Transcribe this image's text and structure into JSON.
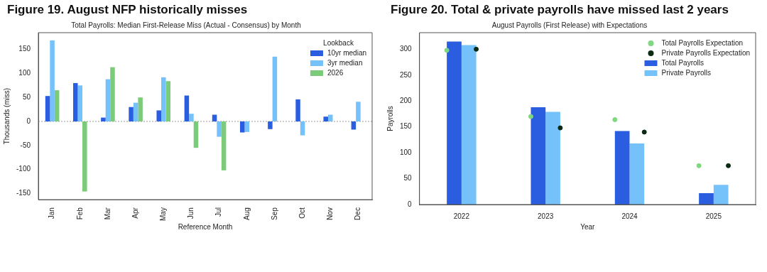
{
  "chart_data": [
    {
      "type": "bar",
      "title": "Figure 19. August NFP historically misses",
      "subtitle": "Total Payrolls: Median First-Release Miss (Actual - Consensus) by Month",
      "xlabel": "Reference Month",
      "ylabel": "Thousands (miss)",
      "legend_title": "Lookback",
      "legend": "top right",
      "grid": false,
      "categories": [
        "Jan",
        "Feb",
        "Mar",
        "Apr",
        "May",
        "Jun",
        "Jul",
        "Aug",
        "Sep",
        "Oct",
        "Nov",
        "Dec"
      ],
      "series": [
        {
          "name": "10yr median",
          "color": "#2a5de0",
          "values": [
            53,
            80,
            8,
            30,
            23,
            54,
            14,
            -23,
            -16,
            46,
            10,
            -17
          ]
        },
        {
          "name": "3yr median",
          "color": "#75c2fa",
          "values": [
            169,
            75,
            88,
            39,
            92,
            16,
            -32,
            -22,
            135,
            -29,
            14,
            41
          ]
        },
        {
          "name": "2026",
          "color": "#7bcb7b",
          "values": [
            65,
            -146,
            113,
            50,
            84,
            -55,
            -102,
            null,
            null,
            null,
            null,
            null
          ]
        }
      ],
      "ylim": [
        -163,
        185
      ],
      "yticks": [
        -150,
        -100,
        -50,
        0,
        50,
        100,
        150
      ],
      "ref_lines": [
        {
          "axis": "y",
          "value": 0,
          "color": "#999999",
          "line_style": "dotted"
        }
      ]
    },
    {
      "type": "bar",
      "title": "Figure 20. Total & private payrolls have missed last 2 years",
      "subtitle": "August Payrolls (First Release) with Expectations",
      "xlabel": "Year",
      "ylabel": "Payrolls",
      "legend": "top right",
      "grid": false,
      "marker": "circle",
      "categories": [
        "2022",
        "2023",
        "2024",
        "2025"
      ],
      "series": [
        {
          "name": "Total Payrolls Expectation",
          "type": "scatter",
          "color": "#7ed87e",
          "values": [
            298,
            170,
            164,
            75
          ]
        },
        {
          "name": "Private Payrolls Expectation",
          "type": "scatter",
          "color": "#0a2a12",
          "values": [
            300,
            148,
            140,
            75
          ]
        },
        {
          "name": "Total Payrolls",
          "color": "#2a5de0",
          "values": [
            315,
            188,
            142,
            22
          ]
        },
        {
          "name": "Private Payrolls",
          "color": "#75c2fa",
          "values": [
            308,
            179,
            118,
            38
          ]
        }
      ],
      "ylim": [
        0,
        332
      ],
      "yticks": [
        0,
        50,
        100,
        150,
        200,
        250,
        300
      ]
    }
  ]
}
